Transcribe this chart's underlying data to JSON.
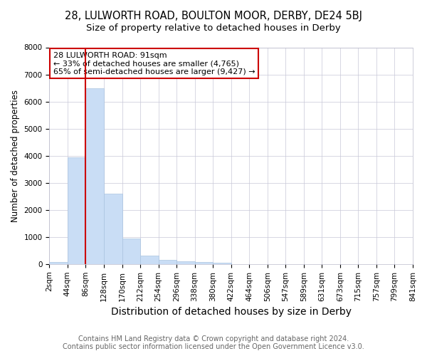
{
  "title": "28, LULWORTH ROAD, BOULTON MOOR, DERBY, DE24 5BJ",
  "subtitle": "Size of property relative to detached houses in Derby",
  "xlabel": "Distribution of detached houses by size in Derby",
  "ylabel": "Number of detached properties",
  "bar_values": [
    80,
    3950,
    6500,
    2600,
    950,
    320,
    140,
    110,
    80,
    60,
    0,
    0,
    0,
    0,
    0,
    0,
    0,
    0,
    0,
    0
  ],
  "bar_labels": [
    "2sqm",
    "44sqm",
    "86sqm",
    "128sqm",
    "170sqm",
    "212sqm",
    "254sqm",
    "296sqm",
    "338sqm",
    "380sqm",
    "422sqm",
    "464sqm",
    "506sqm",
    "547sqm",
    "589sqm",
    "631sqm",
    "673sqm",
    "715sqm",
    "757sqm",
    "799sqm",
    "841sqm"
  ],
  "bar_color": "#c9ddf5",
  "bar_edge_color": "#aac4e0",
  "ylim": [
    0,
    8000
  ],
  "yticks": [
    0,
    1000,
    2000,
    3000,
    4000,
    5000,
    6000,
    7000,
    8000
  ],
  "red_line_color": "#cc0000",
  "annotation_text": "28 LULWORTH ROAD: 91sqm\n← 33% of detached houses are smaller (4,765)\n65% of semi-detached houses are larger (9,427) →",
  "annotation_box_color": "#cc0000",
  "footer_line1": "Contains HM Land Registry data © Crown copyright and database right 2024.",
  "footer_line2": "Contains public sector information licensed under the Open Government Licence v3.0.",
  "background_color": "#ffffff",
  "grid_color": "#c8c8d8",
  "title_fontsize": 10.5,
  "subtitle_fontsize": 9.5,
  "xlabel_fontsize": 10,
  "ylabel_fontsize": 8.5,
  "tick_fontsize": 7.5,
  "footer_fontsize": 7,
  "annotation_fontsize": 8
}
